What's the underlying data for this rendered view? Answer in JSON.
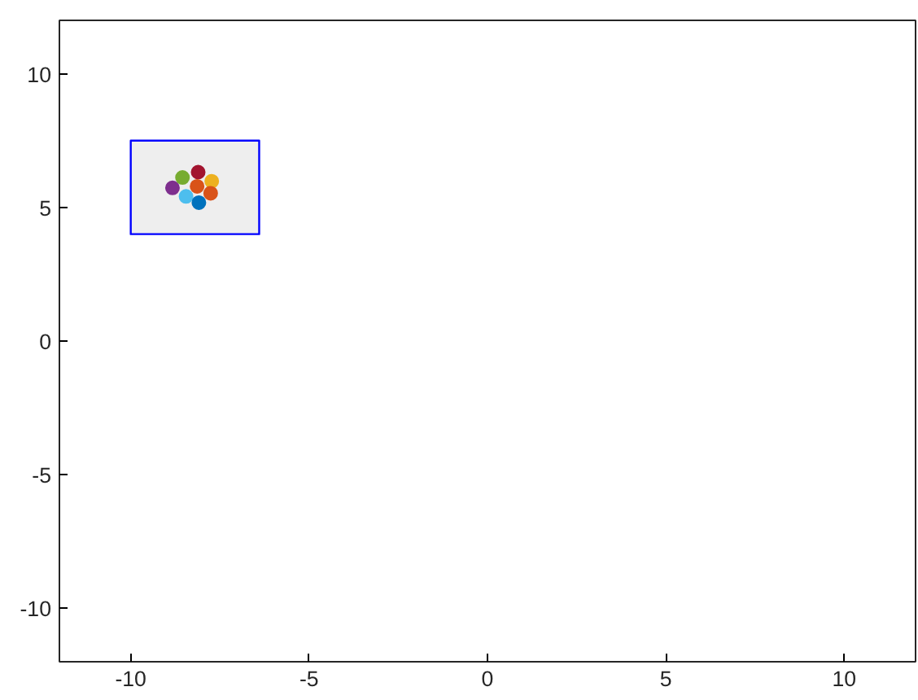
{
  "chart_data": {
    "type": "scatter",
    "xlim": [
      -12,
      12
    ],
    "ylim": [
      -12,
      12
    ],
    "xticks": [
      -10,
      -5,
      0,
      5,
      10
    ],
    "yticks": [
      -10,
      -5,
      0,
      5,
      10
    ],
    "grid": false,
    "series": [
      {
        "type": "area",
        "color": "#0000ff",
        "x": [
          -10,
          -6.4,
          -6.4,
          -10,
          -10
        ],
        "values": [
          4.0,
          4.0,
          7.5,
          7.5,
          4.0
        ]
      },
      {
        "marker": "circle",
        "x": [
          -8.83,
          -8.55,
          -8.11,
          -8.14,
          -7.73,
          -8.45,
          -8.09,
          -7.76
        ],
        "values": [
          5.73,
          6.12,
          6.32,
          5.79,
          5.98,
          5.41,
          5.18,
          5.53
        ],
        "colors": [
          "#7e2f8e",
          "#77ac30",
          "#a2142f",
          "#d95319",
          "#edb120",
          "#4dbeee",
          "#0072bd",
          "#d95319"
        ]
      }
    ]
  }
}
